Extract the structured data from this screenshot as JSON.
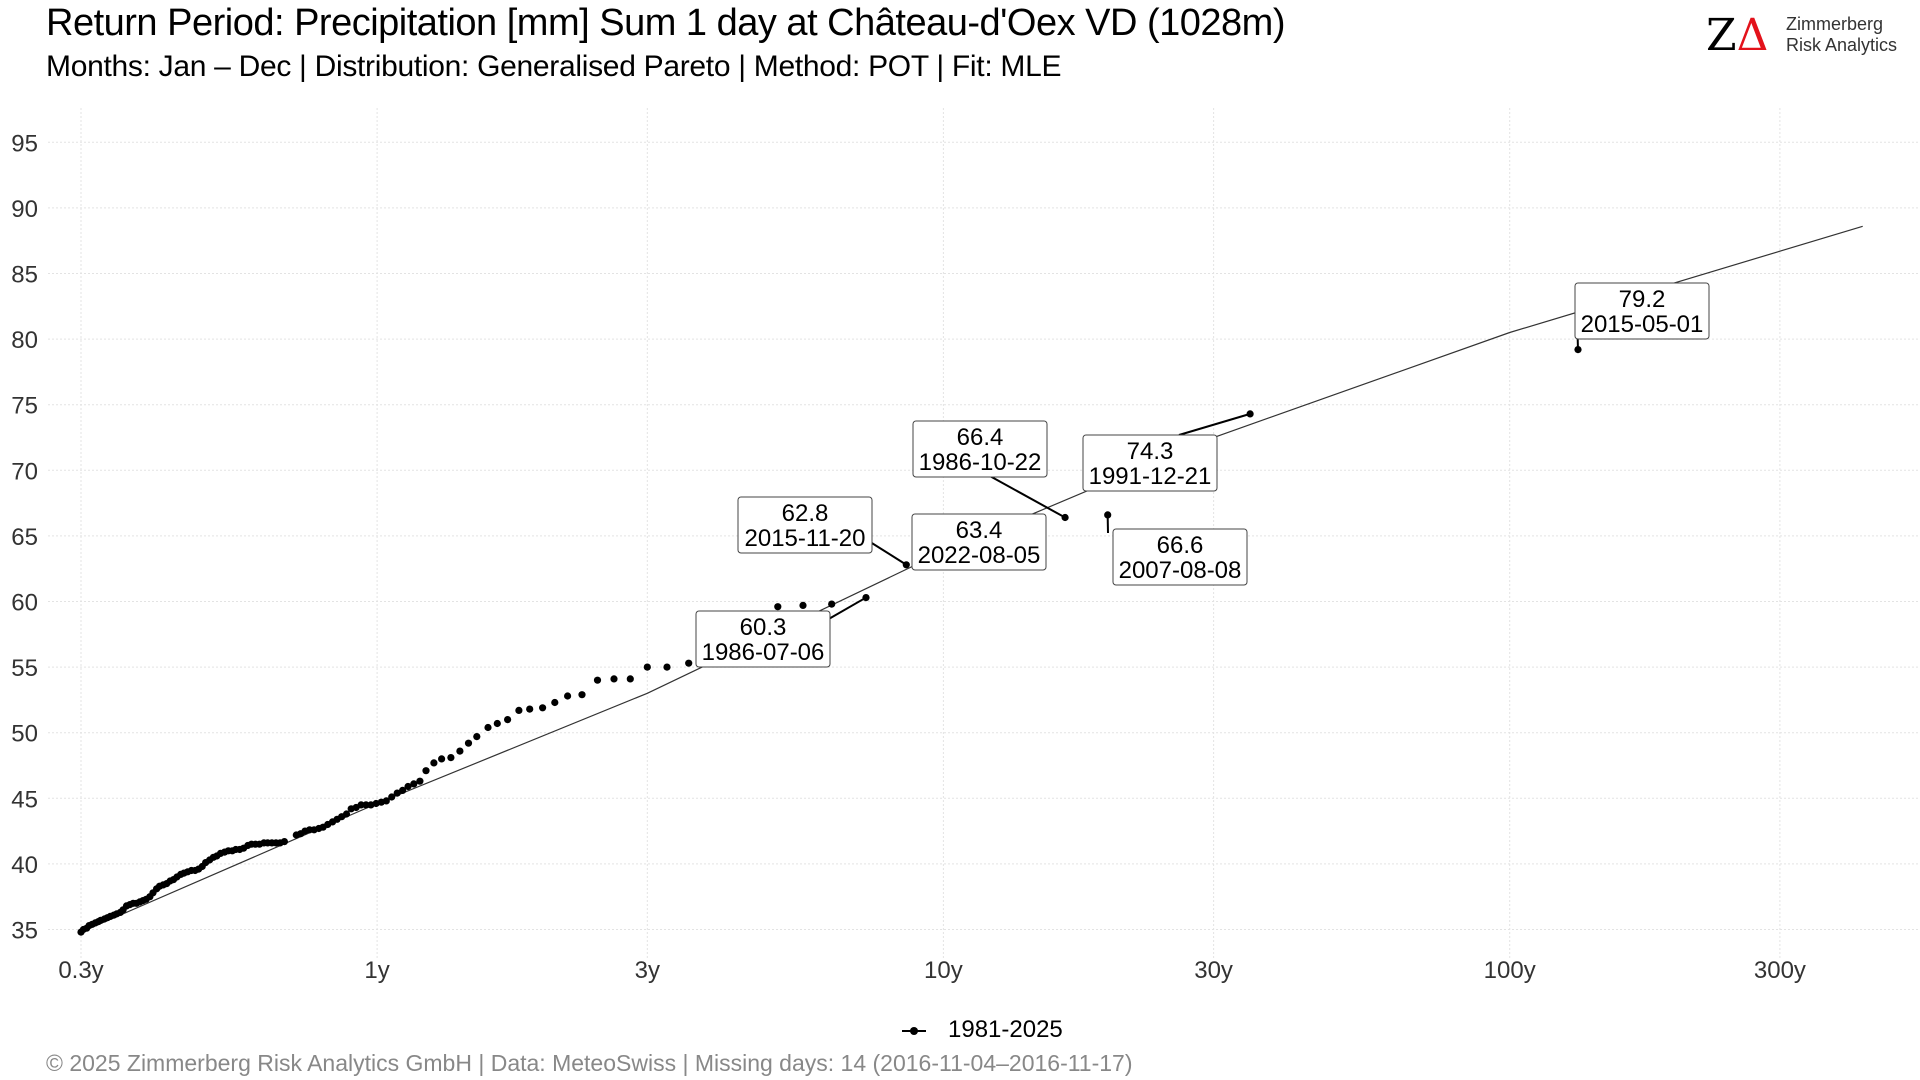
{
  "header": {
    "title": "Return Period: Precipitation [mm] Sum 1 day at Château-d'Oex  VD (1028m)",
    "subtitle": "Months: Jan – Dec | Distribution: Generalised Pareto | Method: POT | Fit: MLE"
  },
  "logo": {
    "mark_z": "Z",
    "mark_delta": "Δ",
    "line1": "Zimmerberg",
    "line2": "Risk Analytics"
  },
  "legend": {
    "label": "1981-2025"
  },
  "footer": {
    "text": "©  2025 Zimmerberg Risk Analytics GmbH | Data: MeteoSwiss | Missing days: 14 (2016-11-04–2016-11-17)"
  },
  "colors": {
    "points": "#000000",
    "fit_line": "#333333",
    "grid": "#e3e3e3",
    "logo_accent": "#e3121b"
  },
  "chart_data": {
    "type": "scatter",
    "title": "Return Period: Precipitation [mm] Sum 1 day at Château-d'Oex  VD (1028m)",
    "subtitle": "Months: Jan – Dec | Distribution: Generalised Pareto | Method: POT | Fit: MLE",
    "xlabel": "",
    "ylabel": "",
    "x_scale": "log",
    "x_unit": "years",
    "xlim": [
      0.3,
      550
    ],
    "ylim": [
      33.5,
      98
    ],
    "x_ticks": [
      0.3,
      1,
      3,
      10,
      30,
      100,
      300
    ],
    "x_tick_labels": [
      "0.3y",
      "1y",
      "3y",
      "10y",
      "30y",
      "100y",
      "300y"
    ],
    "y_ticks": [
      35,
      40,
      45,
      50,
      55,
      60,
      65,
      70,
      75,
      80,
      85,
      90,
      95
    ],
    "grid": true,
    "legend_position": "bottom",
    "fit_line": {
      "x": [
        0.3,
        0.7,
        1.0,
        3.0,
        10.0,
        30.0,
        100.0,
        420.0
      ],
      "y": [
        34.8,
        41.7,
        44.6,
        53.0,
        63.8,
        72.5,
        80.5,
        88.6
      ]
    },
    "series": [
      {
        "name": "1981-2025",
        "x": [
          0.3,
          0.303,
          0.307,
          0.31,
          0.314,
          0.318,
          0.322,
          0.325,
          0.33,
          0.334,
          0.338,
          0.343,
          0.347,
          0.352,
          0.356,
          0.361,
          0.366,
          0.371,
          0.376,
          0.381,
          0.386,
          0.391,
          0.397,
          0.402,
          0.408,
          0.413,
          0.419,
          0.425,
          0.431,
          0.437,
          0.443,
          0.45,
          0.456,
          0.463,
          0.47,
          0.477,
          0.484,
          0.491,
          0.498,
          0.506,
          0.514,
          0.521,
          0.529,
          0.538,
          0.546,
          0.555,
          0.563,
          0.572,
          0.581,
          0.591,
          0.6,
          0.61,
          0.62,
          0.631,
          0.641,
          0.652,
          0.663,
          0.674,
          0.686,
          0.72,
          0.733,
          0.746,
          0.76,
          0.774,
          0.789,
          0.803,
          0.818,
          0.834,
          0.85,
          0.866,
          0.883,
          0.9,
          0.918,
          0.937,
          0.956,
          0.975,
          0.996,
          1.017,
          1.038,
          1.061,
          1.085,
          1.109,
          1.134,
          1.161,
          1.19,
          1.22,
          1.26,
          1.3,
          1.35,
          1.4,
          1.45,
          1.5,
          1.57,
          1.63,
          1.7,
          1.78,
          1.86,
          1.96,
          2.06,
          2.17,
          2.3,
          2.45,
          2.62,
          2.8,
          3.0,
          3.25,
          3.55,
          3.9,
          5.1,
          5.65,
          6.35,
          7.3,
          8.6,
          16.4,
          19.5,
          34.8,
          132.0
        ],
        "y": [
          34.8,
          35.0,
          35.1,
          35.3,
          35.4,
          35.5,
          35.6,
          35.7,
          35.8,
          35.9,
          36.0,
          36.1,
          36.2,
          36.3,
          36.5,
          36.8,
          36.9,
          37.0,
          37.0,
          37.1,
          37.2,
          37.3,
          37.5,
          37.8,
          38.1,
          38.3,
          38.4,
          38.5,
          38.7,
          38.8,
          39.0,
          39.2,
          39.3,
          39.4,
          39.5,
          39.5,
          39.6,
          39.8,
          40.1,
          40.3,
          40.5,
          40.6,
          40.8,
          40.9,
          41.0,
          41.0,
          41.1,
          41.1,
          41.2,
          41.4,
          41.5,
          41.5,
          41.5,
          41.6,
          41.6,
          41.6,
          41.6,
          41.6,
          41.7,
          42.2,
          42.3,
          42.5,
          42.6,
          42.6,
          42.7,
          42.8,
          43.0,
          43.2,
          43.4,
          43.6,
          43.8,
          44.2,
          44.3,
          44.5,
          44.5,
          44.5,
          44.6,
          44.7,
          44.8,
          45.1,
          45.4,
          45.6,
          45.9,
          46.1,
          46.3,
          47.1,
          47.7,
          48.0,
          48.1,
          48.6,
          49.2,
          49.7,
          50.4,
          50.7,
          51.0,
          51.7,
          51.8,
          51.9,
          52.3,
          52.8,
          52.9,
          54.0,
          54.1,
          54.1,
          55.0,
          55.0,
          55.3,
          55.9,
          59.6,
          59.7,
          59.8,
          60.3,
          62.8,
          66.4,
          66.6,
          74.3,
          79.2
        ]
      }
    ],
    "annotations": [
      {
        "value": "60.3",
        "date": "1986-07-06",
        "x": 7.3,
        "y": 60.3
      },
      {
        "value": "62.8",
        "date": "2015-11-20",
        "x": 8.6,
        "y": 62.8
      },
      {
        "value": "63.4",
        "date": "2022-08-05",
        "x": 12.4,
        "y": 63.4
      },
      {
        "value": "66.4",
        "date": "1986-10-22",
        "x": 16.4,
        "y": 66.4
      },
      {
        "value": "66.6",
        "date": "2007-08-08",
        "x": 19.5,
        "y": 66.6
      },
      {
        "value": "74.3",
        "date": "1991-12-21",
        "x": 34.8,
        "y": 74.3
      },
      {
        "value": "79.2",
        "date": "2015-05-01",
        "x": 132.0,
        "y": 79.2
      }
    ]
  }
}
